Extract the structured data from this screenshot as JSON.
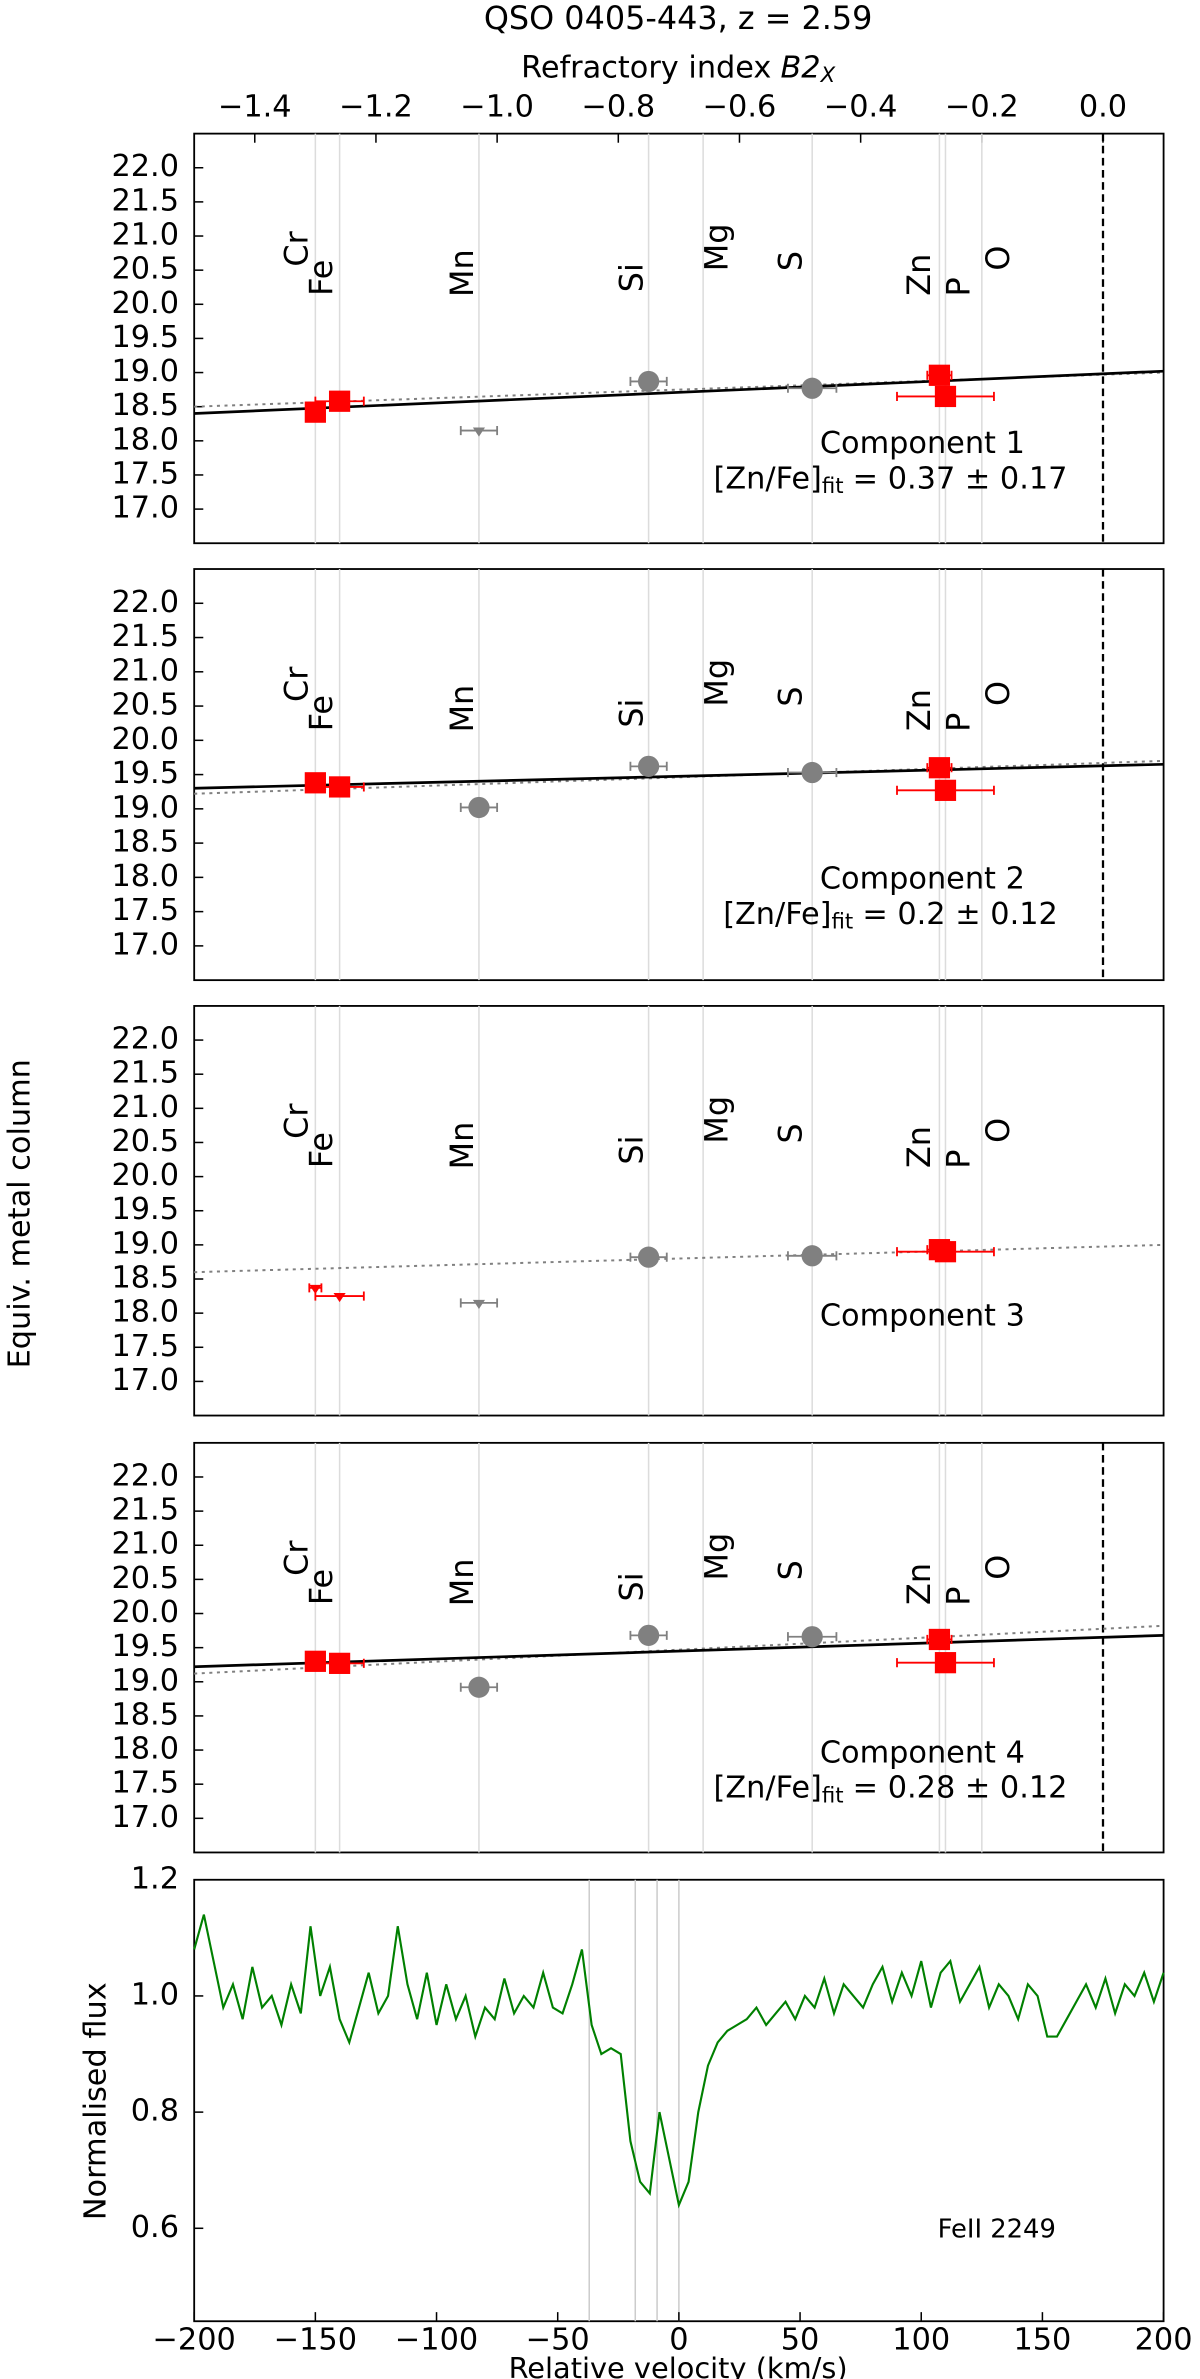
{
  "chart_data": {
    "type": "multi",
    "title": "QSO 0405-443, z = 2.59",
    "top_axis": {
      "label_parts": [
        "Refractory index",
        "B2",
        "X"
      ],
      "xlim": [
        -1.5,
        0.1
      ],
      "xticks": [
        {
          "value": -1.4,
          "label": "−1.4"
        },
        {
          "value": -1.2,
          "label": "−1.2"
        },
        {
          "value": -1.0,
          "label": "−1.0"
        },
        {
          "value": -0.8,
          "label": "−0.8"
        },
        {
          "value": -0.6,
          "label": "−0.6"
        },
        {
          "value": -0.4,
          "label": "−0.4"
        },
        {
          "value": -0.2,
          "label": "−0.2"
        },
        {
          "value": 0.0,
          "label": "0.0"
        }
      ]
    },
    "ylabel": "Equiv. metal column",
    "panel_ylim": [
      16.5,
      22.5
    ],
    "panel_yticks": [
      {
        "value": 17.0,
        "label": "17.0"
      },
      17.5,
      18.0,
      18.5,
      19.0,
      19.5,
      20.0,
      20.5,
      21.0,
      21.5,
      22.0
    ],
    "panel_yticks_labels": [
      {
        "value": 17.0,
        "label": "17.0"
      },
      {
        "value": 17.5,
        "label": "17.5"
      },
      {
        "value": 18.0,
        "label": "18.0"
      },
      {
        "value": 18.5,
        "label": "18.5"
      },
      {
        "value": 19.0,
        "label": "19.0"
      },
      {
        "value": 19.5,
        "label": "19.5"
      },
      {
        "value": 20.0,
        "label": "20.0"
      },
      {
        "value": 20.5,
        "label": "20.5"
      },
      {
        "value": 21.0,
        "label": "21.0"
      },
      {
        "value": 21.5,
        "label": "21.5"
      },
      {
        "value": 22.0,
        "label": "22.0"
      }
    ],
    "elements": [
      {
        "name": "Cr",
        "b2": -1.3,
        "color": "#ff0000"
      },
      {
        "name": "Fe",
        "b2": -1.26,
        "color": "#ff0000"
      },
      {
        "name": "Mn",
        "b2": -1.03,
        "color": "#808080"
      },
      {
        "name": "Si",
        "b2": -0.75,
        "color": "#808080"
      },
      {
        "name": "Mg",
        "b2": -0.66,
        "color": "#808080"
      },
      {
        "name": "S",
        "b2": -0.48,
        "color": "#808080"
      },
      {
        "name": "Zn",
        "b2": -0.27,
        "color": "#ff0000"
      },
      {
        "name": "P",
        "b2": -0.26,
        "color": "#ff0000"
      },
      {
        "name": "O",
        "b2": -0.2,
        "color": "#808080"
      }
    ],
    "panels": [
      {
        "type": "scatter",
        "zero_line": true,
        "fit": {
          "x": [
            -1.5,
            0.1
          ],
          "y": [
            18.4,
            19.02
          ],
          "color": "#000000"
        },
        "trend": {
          "x": [
            -1.5,
            0.1
          ],
          "y": [
            18.5,
            19.0
          ],
          "color": "#808080"
        },
        "points": [
          {
            "x": -1.3,
            "y": 18.42,
            "marker": "square",
            "color": "#ff0000"
          },
          {
            "x": -1.26,
            "y": 18.58,
            "xerr": 0.04,
            "marker": "square",
            "color": "#ff0000"
          },
          {
            "x": -1.03,
            "y": 18.15,
            "xerr": 0.03,
            "marker": "triangle",
            "color": "#808080"
          },
          {
            "x": -0.75,
            "y": 18.87,
            "xerr": 0.03,
            "marker": "circle",
            "color": "#808080"
          },
          {
            "x": -0.48,
            "y": 18.77,
            "xerr": 0.04,
            "marker": "circle",
            "color": "#808080"
          },
          {
            "x": -0.27,
            "y": 18.96,
            "xerr": 0.02,
            "marker": "square",
            "color": "#ff0000"
          },
          {
            "x": -0.26,
            "y": 18.65,
            "xerr": 0.08,
            "marker": "square",
            "color": "#ff0000"
          }
        ],
        "annotation": {
          "label": "Component 1",
          "fit_parts": [
            "[Zn/Fe]",
            "fit",
            "= 0.37 ± 0.17"
          ]
        }
      },
      {
        "type": "scatter",
        "zero_line": true,
        "fit": {
          "x": [
            -1.5,
            0.1
          ],
          "y": [
            19.3,
            19.65
          ],
          "color": "#000000"
        },
        "trend": {
          "x": [
            -1.5,
            0.1
          ],
          "y": [
            19.22,
            19.7
          ],
          "color": "#808080"
        },
        "points": [
          {
            "x": -1.3,
            "y": 19.38,
            "marker": "square",
            "color": "#ff0000"
          },
          {
            "x": -1.26,
            "y": 19.32,
            "xerr": 0.04,
            "marker": "square",
            "color": "#ff0000"
          },
          {
            "x": -1.03,
            "y": 19.02,
            "xerr": 0.03,
            "marker": "circle",
            "color": "#808080"
          },
          {
            "x": -0.75,
            "y": 19.62,
            "xerr": 0.03,
            "marker": "circle",
            "color": "#808080"
          },
          {
            "x": -0.48,
            "y": 19.53,
            "xerr": 0.04,
            "marker": "circle",
            "color": "#808080"
          },
          {
            "x": -0.27,
            "y": 19.6,
            "xerr": 0.02,
            "marker": "square",
            "color": "#ff0000"
          },
          {
            "x": -0.26,
            "y": 19.27,
            "xerr": 0.08,
            "marker": "square",
            "color": "#ff0000"
          }
        ],
        "annotation": {
          "label": "Component 2",
          "fit_parts": [
            "[Zn/Fe]",
            "fit",
            "= 0.2 ± 0.12"
          ]
        }
      },
      {
        "type": "scatter",
        "zero_line": false,
        "trend": {
          "x": [
            -1.5,
            0.1
          ],
          "y": [
            18.6,
            19.0
          ],
          "color": "#808080"
        },
        "points": [
          {
            "x": -1.3,
            "y": 18.37,
            "xerr": 0.01,
            "marker": "triangle",
            "color": "#ff0000"
          },
          {
            "x": -1.26,
            "y": 18.25,
            "xerr": 0.04,
            "marker": "triangle",
            "color": "#ff0000"
          },
          {
            "x": -1.03,
            "y": 18.15,
            "xerr": 0.03,
            "marker": "triangle",
            "color": "#808080"
          },
          {
            "x": -0.75,
            "y": 18.82,
            "xerr": 0.03,
            "marker": "circle",
            "color": "#808080"
          },
          {
            "x": -0.48,
            "y": 18.84,
            "xerr": 0.04,
            "marker": "circle",
            "color": "#808080"
          },
          {
            "x": -0.27,
            "y": 18.93,
            "xerr": 0.02,
            "marker": "square",
            "color": "#ff0000"
          },
          {
            "x": -0.26,
            "y": 18.9,
            "xerr": 0.08,
            "marker": "square",
            "color": "#ff0000"
          }
        ],
        "annotation": {
          "label": "Component 3"
        }
      },
      {
        "type": "scatter",
        "zero_line": true,
        "fit": {
          "x": [
            -1.5,
            0.1
          ],
          "y": [
            19.22,
            19.68
          ],
          "color": "#000000"
        },
        "trend": {
          "x": [
            -1.5,
            0.1
          ],
          "y": [
            19.12,
            19.82
          ],
          "color": "#808080"
        },
        "points": [
          {
            "x": -1.3,
            "y": 19.3,
            "marker": "square",
            "color": "#ff0000"
          },
          {
            "x": -1.26,
            "y": 19.27,
            "xerr": 0.04,
            "marker": "square",
            "color": "#ff0000"
          },
          {
            "x": -1.03,
            "y": 18.92,
            "xerr": 0.03,
            "marker": "circle",
            "color": "#808080"
          },
          {
            "x": -0.75,
            "y": 19.68,
            "xerr": 0.03,
            "marker": "circle",
            "color": "#808080"
          },
          {
            "x": -0.48,
            "y": 19.66,
            "xerr": 0.04,
            "marker": "circle",
            "color": "#808080"
          },
          {
            "x": -0.27,
            "y": 19.62,
            "xerr": 0.02,
            "marker": "square",
            "color": "#ff0000"
          },
          {
            "x": -0.26,
            "y": 19.28,
            "xerr": 0.08,
            "marker": "square",
            "color": "#ff0000"
          }
        ],
        "annotation": {
          "label": "Component 4",
          "fit_parts": [
            "[Zn/Fe]",
            "fit",
            "= 0.28 ± 0.12"
          ]
        }
      }
    ],
    "spectrum": {
      "type": "line",
      "xlabel": "Relative velocity (km/s)",
      "ylabel": "Normalised flux",
      "annotation": "FeII 2249",
      "color": "#008000",
      "xlim": [
        -200,
        200
      ],
      "ylim": [
        0.44,
        1.2
      ],
      "xticks": [
        {
          "value": -200,
          "label": "−200"
        },
        {
          "value": -150,
          "label": "−150"
        },
        {
          "value": -100,
          "label": "−100"
        },
        {
          "value": -50,
          "label": "−50"
        },
        0,
        50,
        100,
        150,
        200
      ],
      "yticks": [
        0.6,
        0.8,
        {
          "value": 1.0,
          "label": "1.0"
        },
        1.2
      ],
      "vlines": [
        -37,
        -18,
        -9,
        0
      ],
      "x": [
        -200,
        -196,
        -192,
        -188,
        -184,
        -180,
        -176,
        -172,
        -168,
        -164,
        -160,
        -156,
        -152,
        -148,
        -144,
        -140,
        -136,
        -132,
        -128,
        -124,
        -120,
        -116,
        -112,
        -108,
        -104,
        -100,
        -96,
        -92,
        -88,
        -84,
        -80,
        -76,
        -72,
        -68,
        -64,
        -60,
        -56,
        -52,
        -48,
        -44,
        -40,
        -36,
        -32,
        -28,
        -24,
        -20,
        -16,
        -12,
        -8,
        -4,
        0,
        4,
        8,
        12,
        16,
        20,
        24,
        28,
        32,
        36,
        40,
        44,
        48,
        52,
        56,
        60,
        64,
        68,
        72,
        76,
        80,
        84,
        88,
        92,
        96,
        100,
        104,
        108,
        112,
        116,
        120,
        124,
        128,
        132,
        136,
        140,
        144,
        148,
        152,
        156,
        160,
        164,
        168,
        172,
        176,
        180,
        184,
        188,
        192,
        196,
        200
      ],
      "values": [
        1.08,
        1.14,
        1.06,
        0.98,
        1.02,
        0.96,
        1.05,
        0.98,
        1.0,
        0.95,
        1.02,
        0.97,
        1.12,
        1.0,
        1.05,
        0.96,
        0.92,
        0.98,
        1.04,
        0.97,
        1.0,
        1.12,
        1.02,
        0.96,
        1.04,
        0.95,
        1.02,
        0.96,
        1.0,
        0.93,
        0.98,
        0.96,
        1.03,
        0.97,
        1.0,
        0.98,
        1.04,
        0.98,
        0.97,
        1.02,
        1.08,
        0.95,
        0.9,
        0.91,
        0.9,
        0.75,
        0.68,
        0.66,
        0.8,
        0.72,
        0.64,
        0.68,
        0.8,
        0.88,
        0.92,
        0.94,
        0.95,
        0.96,
        0.98,
        0.95,
        0.97,
        0.99,
        0.96,
        1.0,
        0.98,
        1.03,
        0.97,
        1.02,
        1.0,
        0.98,
        1.02,
        1.05,
        0.99,
        1.04,
        1.0,
        1.06,
        0.98,
        1.04,
        1.06,
        0.99,
        1.02,
        1.05,
        0.98,
        1.02,
        1.0,
        0.96,
        1.02,
        1.0,
        0.93,
        0.93,
        0.96,
        0.99,
        1.02,
        0.98,
        1.03,
        0.97,
        1.02,
        1.0,
        1.04,
        0.99,
        1.04
      ]
    }
  }
}
